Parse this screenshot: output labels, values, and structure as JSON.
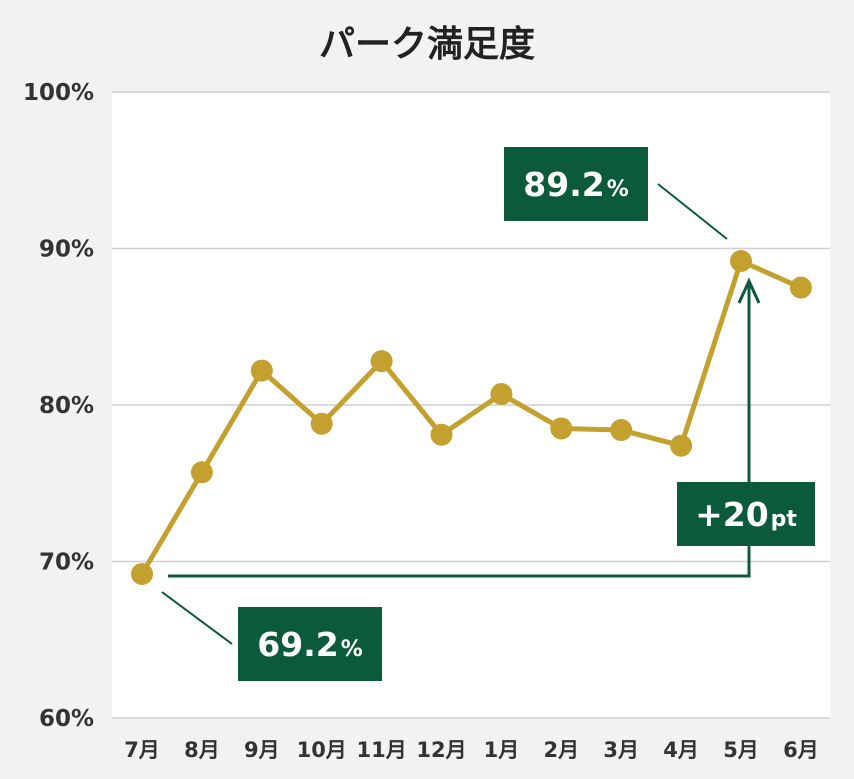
{
  "chart_data": {
    "type": "line",
    "title": "パーク満足度",
    "categories": [
      "7月",
      "8月",
      "9月",
      "10月",
      "11月",
      "12月",
      "1月",
      "2月",
      "3月",
      "4月",
      "5月",
      "6月"
    ],
    "series": [
      {
        "values": [
          69.2,
          75.7,
          82.2,
          78.8,
          82.8,
          78.1,
          80.7,
          78.5,
          78.4,
          77.4,
          89.2,
          87.5
        ]
      }
    ],
    "ylim": [
      60,
      100
    ],
    "yticks": [
      60,
      70,
      80,
      90,
      100
    ],
    "ytick_labels": [
      "60%",
      "70%",
      "80%",
      "90%",
      "100%"
    ],
    "grid": true,
    "colors": {
      "line": "#c4a02f",
      "annotation": "#0b5a3c",
      "background": "#f2f2f2",
      "plot": "#ffffff"
    },
    "annotations": [
      {
        "target": "7月",
        "value": "69.2",
        "unit": "%"
      },
      {
        "target": "5月",
        "value": "89.2",
        "unit": "%"
      },
      {
        "from": "7月",
        "to": "5月",
        "value": "+20",
        "unit": "pt"
      }
    ]
  }
}
